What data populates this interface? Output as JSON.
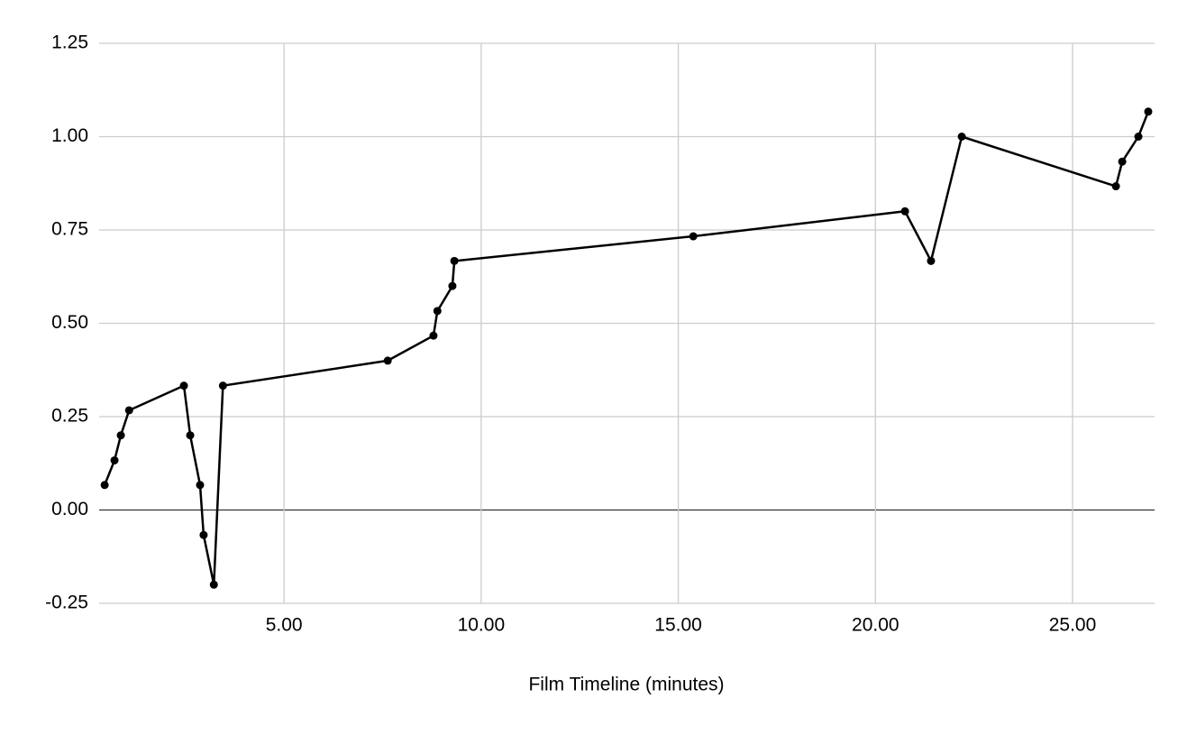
{
  "chart_data": {
    "type": "line",
    "x_label": "Film Timeline (minutes)",
    "x": [
      0.45,
      0.7,
      0.86,
      1.07,
      2.46,
      2.62,
      2.87,
      2.96,
      3.22,
      3.45,
      7.63,
      8.79,
      8.89,
      9.27,
      9.32,
      15.38,
      20.75,
      21.41,
      22.19,
      26.1,
      26.26,
      26.67,
      26.92
    ],
    "series": [
      {
        "color": "#000000",
        "values": [
          0.067,
          0.133,
          0.2,
          0.267,
          0.333,
          0.2,
          0.067,
          -0.067,
          -0.2,
          0.333,
          0.4,
          0.467,
          0.533,
          0.6,
          0.667,
          0.733,
          0.8,
          0.667,
          1.0,
          0.867,
          0.933,
          1.0,
          1.067
        ]
      }
    ],
    "xlim": [
      0.31,
      27.08
    ],
    "xticks": [
      {
        "value": 5,
        "label": "5.00"
      },
      {
        "value": 10,
        "label": "10.00"
      },
      {
        "value": 15,
        "label": "15.00"
      },
      {
        "value": 20,
        "label": "20.00"
      },
      {
        "value": 25,
        "label": "25.00"
      }
    ],
    "ylim": [
      -0.25,
      1.25
    ],
    "yticks": [
      -0.25,
      {
        "value": 0,
        "label": "0.00"
      },
      0.25,
      {
        "value": 0.5,
        "label": "0.50"
      },
      0.75,
      {
        "value": 1,
        "label": "1.00"
      },
      1.25
    ],
    "grid": true
  }
}
